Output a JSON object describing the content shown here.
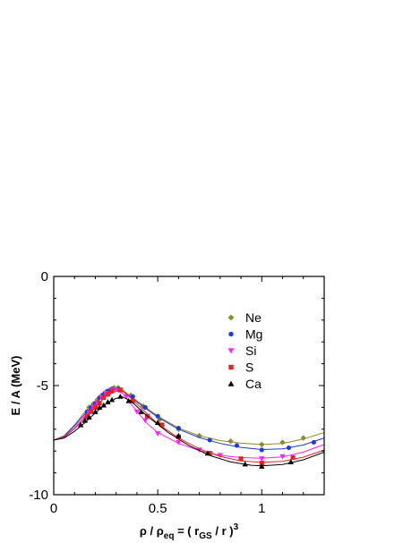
{
  "chart_data": {
    "type": "scatter",
    "xlabel": {
      "rho": "ρ",
      "slash1": " / ",
      "rho_eq_main": "ρ",
      "rho_eq_sub": "eq",
      "eq": " = ( r",
      "gs_sub": "GS",
      "tail": " / r )",
      "power": "3"
    },
    "ylabel": "E / A (MeV)",
    "xlim": [
      0,
      1.3
    ],
    "ylim": [
      -10,
      0
    ],
    "xticks": [
      {
        "value": 0,
        "label": "0"
      },
      {
        "value": 0.5,
        "label": "0.5"
      },
      {
        "value": 1,
        "label": "1"
      }
    ],
    "yticks": [
      {
        "value": 0,
        "label": "0"
      },
      {
        "value": -5,
        "label": "-5"
      },
      {
        "value": -10,
        "label": "-10"
      }
    ],
    "legend_position": "inside-upper-right",
    "series": [
      {
        "name": "Ne",
        "marker": "diamond",
        "color": "#8b8b2a",
        "points": [
          [
            0.17,
            -6.0
          ],
          [
            0.19,
            -5.85
          ],
          [
            0.21,
            -5.65
          ],
          [
            0.23,
            -5.45
          ],
          [
            0.25,
            -5.3
          ],
          [
            0.27,
            -5.2
          ],
          [
            0.29,
            -5.1
          ],
          [
            0.31,
            -5.1
          ],
          [
            0.37,
            -5.45
          ],
          [
            0.43,
            -5.95
          ],
          [
            0.51,
            -6.55
          ],
          [
            0.6,
            -7.0
          ],
          [
            0.7,
            -7.3
          ],
          [
            0.85,
            -7.55
          ],
          [
            1.0,
            -7.7
          ],
          [
            1.1,
            -7.6
          ],
          [
            1.2,
            -7.4
          ]
        ],
        "curve": [
          [
            0,
            -7.5
          ],
          [
            0.05,
            -7.3
          ],
          [
            0.1,
            -6.8
          ],
          [
            0.15,
            -6.2
          ],
          [
            0.2,
            -5.7
          ],
          [
            0.25,
            -5.3
          ],
          [
            0.29,
            -5.12
          ],
          [
            0.33,
            -5.2
          ],
          [
            0.4,
            -5.7
          ],
          [
            0.5,
            -6.4
          ],
          [
            0.6,
            -6.95
          ],
          [
            0.7,
            -7.3
          ],
          [
            0.8,
            -7.52
          ],
          [
            0.9,
            -7.64
          ],
          [
            1.0,
            -7.7
          ],
          [
            1.1,
            -7.65
          ],
          [
            1.2,
            -7.45
          ],
          [
            1.3,
            -7.15
          ]
        ]
      },
      {
        "name": "Mg",
        "marker": "circle",
        "color": "#1f3ad6",
        "points": [
          [
            0.16,
            -6.2
          ],
          [
            0.18,
            -6.0
          ],
          [
            0.2,
            -5.8
          ],
          [
            0.22,
            -5.55
          ],
          [
            0.24,
            -5.4
          ],
          [
            0.26,
            -5.25
          ],
          [
            0.28,
            -5.15
          ],
          [
            0.31,
            -5.15
          ],
          [
            0.38,
            -5.5
          ],
          [
            0.44,
            -6.0
          ],
          [
            0.5,
            -6.4
          ],
          [
            0.6,
            -6.95
          ],
          [
            0.75,
            -7.5
          ],
          [
            0.88,
            -7.75
          ],
          [
            1.0,
            -7.95
          ],
          [
            1.13,
            -7.85
          ],
          [
            1.25,
            -7.6
          ]
        ],
        "curve": [
          [
            0,
            -7.5
          ],
          [
            0.05,
            -7.32
          ],
          [
            0.1,
            -6.85
          ],
          [
            0.15,
            -6.3
          ],
          [
            0.2,
            -5.8
          ],
          [
            0.25,
            -5.35
          ],
          [
            0.29,
            -5.15
          ],
          [
            0.33,
            -5.25
          ],
          [
            0.4,
            -5.75
          ],
          [
            0.5,
            -6.45
          ],
          [
            0.6,
            -7.0
          ],
          [
            0.7,
            -7.38
          ],
          [
            0.8,
            -7.65
          ],
          [
            0.9,
            -7.83
          ],
          [
            1.0,
            -7.93
          ],
          [
            1.1,
            -7.9
          ],
          [
            1.2,
            -7.72
          ],
          [
            1.3,
            -7.4
          ]
        ]
      },
      {
        "name": "Si",
        "marker": "triangle-down",
        "color": "#ff22ff",
        "points": [
          [
            0.15,
            -6.5
          ],
          [
            0.17,
            -6.25
          ],
          [
            0.19,
            -6.0
          ],
          [
            0.21,
            -5.8
          ],
          [
            0.23,
            -5.55
          ],
          [
            0.25,
            -5.35
          ],
          [
            0.28,
            -5.2
          ],
          [
            0.31,
            -5.2
          ],
          [
            0.35,
            -5.5
          ],
          [
            0.4,
            -6.2
          ],
          [
            0.44,
            -6.6
          ],
          [
            0.5,
            -7.2
          ],
          [
            0.6,
            -7.6
          ],
          [
            0.7,
            -7.95
          ],
          [
            0.8,
            -8.2
          ],
          [
            1.0,
            -8.35
          ],
          [
            1.1,
            -8.25
          ]
        ],
        "curve": [
          [
            0,
            -7.5
          ],
          [
            0.05,
            -7.35
          ],
          [
            0.1,
            -6.95
          ],
          [
            0.15,
            -6.4
          ],
          [
            0.2,
            -5.85
          ],
          [
            0.25,
            -5.4
          ],
          [
            0.29,
            -5.2
          ],
          [
            0.33,
            -5.35
          ],
          [
            0.38,
            -5.95
          ],
          [
            0.45,
            -6.75
          ],
          [
            0.5,
            -7.15
          ],
          [
            0.6,
            -7.65
          ],
          [
            0.7,
            -7.98
          ],
          [
            0.8,
            -8.2
          ],
          [
            0.9,
            -8.3
          ],
          [
            1.0,
            -8.33
          ],
          [
            1.1,
            -8.27
          ],
          [
            1.2,
            -8.05
          ],
          [
            1.3,
            -7.7
          ]
        ]
      },
      {
        "name": "S",
        "marker": "square",
        "color": "#ee2020",
        "points": [
          [
            0.16,
            -6.4
          ],
          [
            0.18,
            -6.2
          ],
          [
            0.2,
            -6.0
          ],
          [
            0.22,
            -5.8
          ],
          [
            0.24,
            -5.55
          ],
          [
            0.26,
            -5.4
          ],
          [
            0.28,
            -5.25
          ],
          [
            0.32,
            -5.2
          ],
          [
            0.38,
            -5.7
          ],
          [
            0.45,
            -6.4
          ],
          [
            0.52,
            -6.8
          ],
          [
            0.6,
            -7.35
          ],
          [
            0.75,
            -8.1
          ],
          [
            0.9,
            -8.35
          ],
          [
            1.0,
            -8.55
          ],
          [
            1.15,
            -8.3
          ]
        ],
        "curve": [
          [
            0,
            -7.5
          ],
          [
            0.05,
            -7.36
          ],
          [
            0.1,
            -6.98
          ],
          [
            0.15,
            -6.5
          ],
          [
            0.2,
            -6.0
          ],
          [
            0.25,
            -5.5
          ],
          [
            0.3,
            -5.25
          ],
          [
            0.34,
            -5.3
          ],
          [
            0.4,
            -5.85
          ],
          [
            0.5,
            -6.75
          ],
          [
            0.6,
            -7.4
          ],
          [
            0.7,
            -7.9
          ],
          [
            0.8,
            -8.25
          ],
          [
            0.9,
            -8.45
          ],
          [
            1.0,
            -8.52
          ],
          [
            1.1,
            -8.47
          ],
          [
            1.2,
            -8.28
          ],
          [
            1.3,
            -7.95
          ]
        ]
      },
      {
        "name": "Ca",
        "marker": "triangle-up",
        "color": "#000000",
        "points": [
          [
            0.13,
            -6.8
          ],
          [
            0.15,
            -6.6
          ],
          [
            0.17,
            -6.45
          ],
          [
            0.2,
            -6.2
          ],
          [
            0.22,
            -6.0
          ],
          [
            0.24,
            -5.9
          ],
          [
            0.26,
            -5.75
          ],
          [
            0.28,
            -5.65
          ],
          [
            0.32,
            -5.5
          ],
          [
            0.36,
            -5.7
          ],
          [
            0.42,
            -6.2
          ],
          [
            0.5,
            -6.7
          ],
          [
            0.6,
            -7.3
          ],
          [
            0.74,
            -8.1
          ],
          [
            0.92,
            -8.6
          ],
          [
            1.0,
            -8.7
          ],
          [
            1.14,
            -8.5
          ]
        ],
        "curve": [
          [
            0,
            -7.5
          ],
          [
            0.05,
            -7.4
          ],
          [
            0.1,
            -7.1
          ],
          [
            0.15,
            -6.7
          ],
          [
            0.2,
            -6.25
          ],
          [
            0.25,
            -5.85
          ],
          [
            0.3,
            -5.58
          ],
          [
            0.33,
            -5.52
          ],
          [
            0.37,
            -5.7
          ],
          [
            0.45,
            -6.4
          ],
          [
            0.55,
            -7.15
          ],
          [
            0.65,
            -7.75
          ],
          [
            0.75,
            -8.2
          ],
          [
            0.85,
            -8.5
          ],
          [
            0.95,
            -8.65
          ],
          [
            1.0,
            -8.68
          ],
          [
            1.1,
            -8.62
          ],
          [
            1.2,
            -8.4
          ],
          [
            1.3,
            -8.05
          ]
        ]
      }
    ]
  }
}
